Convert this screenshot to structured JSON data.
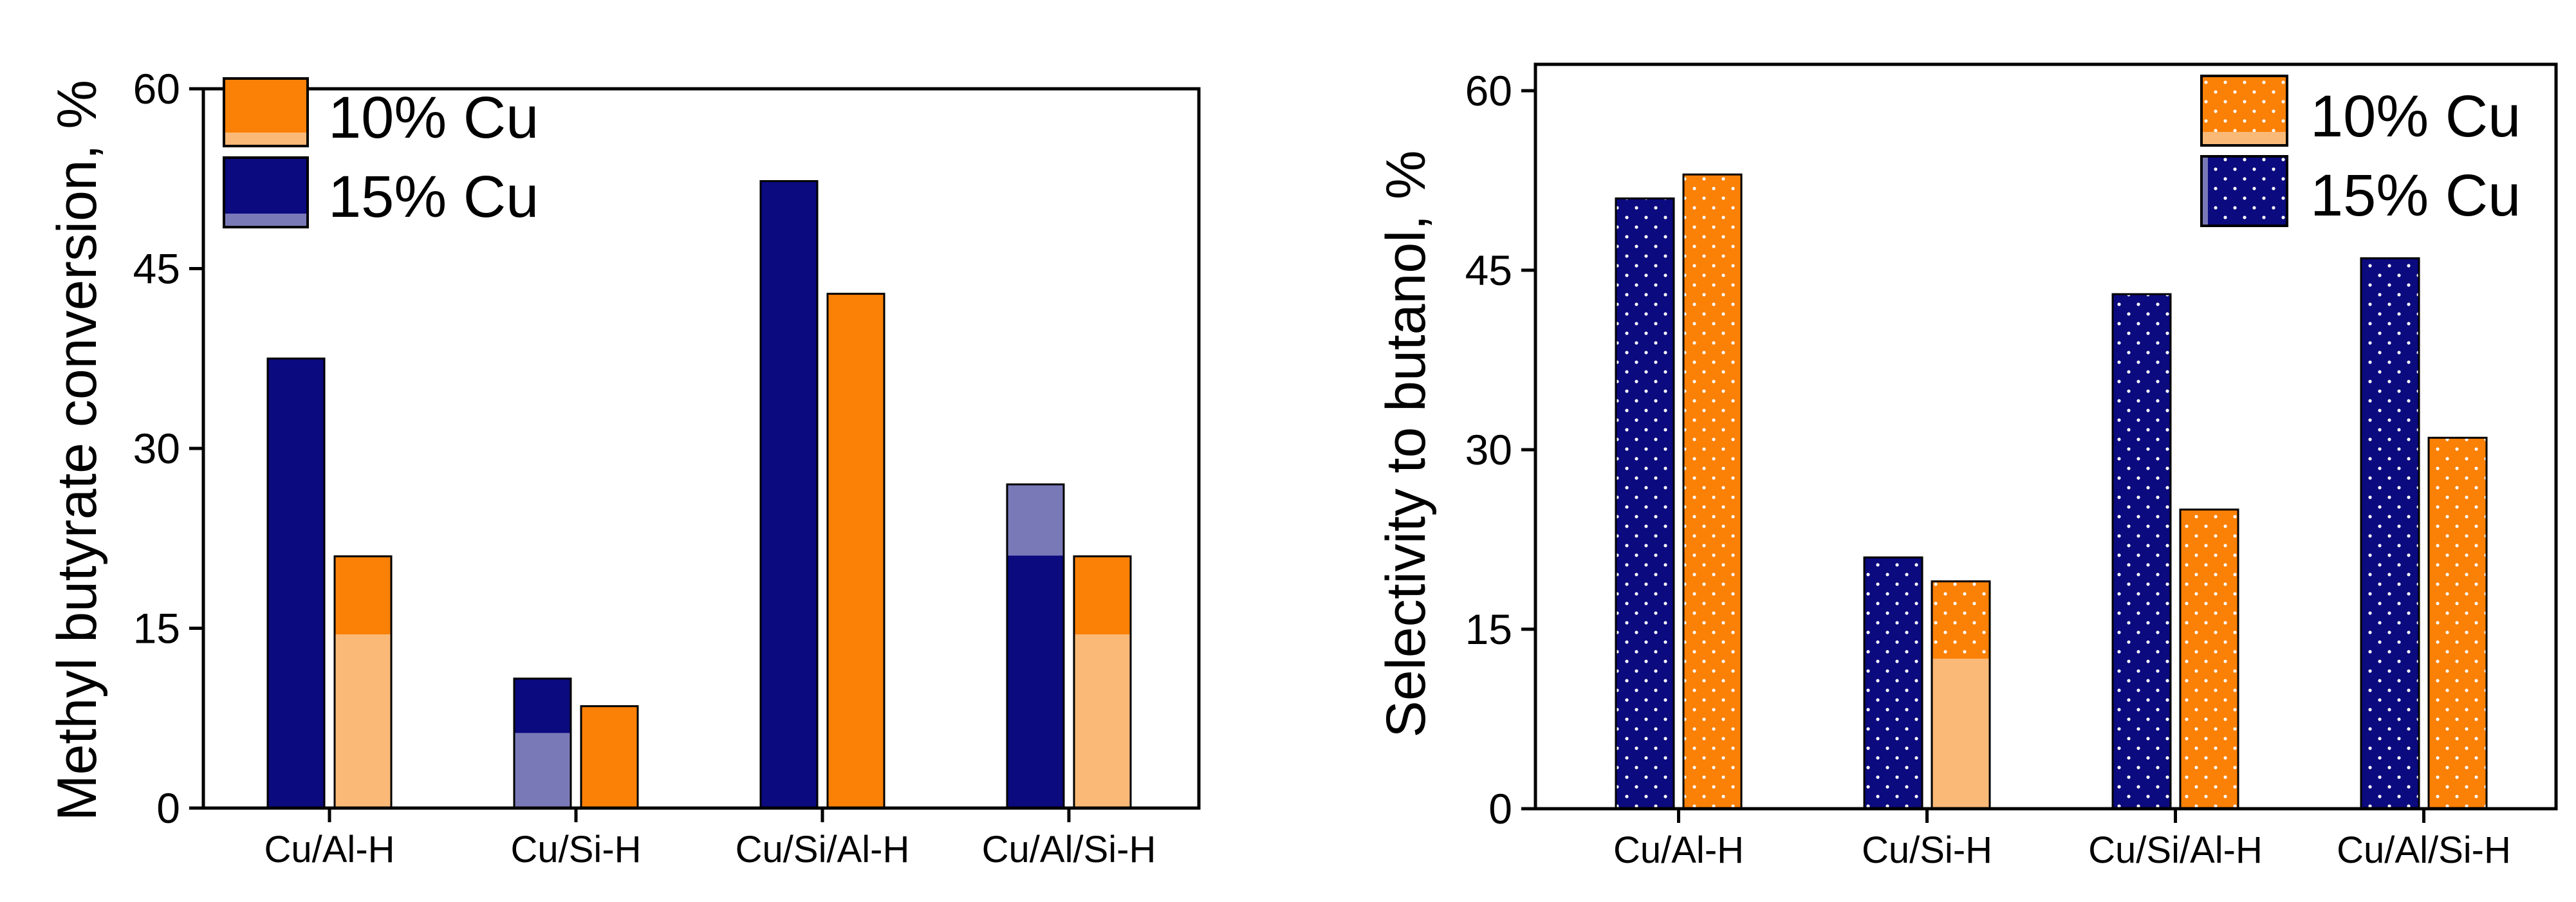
{
  "colors": {
    "navy": "#0b0a7e",
    "orange": "#fa8006",
    "orange_light": "#fbb977",
    "navy_light": "#7a79b8",
    "dot": "#ffffff",
    "axis": "#000000"
  },
  "chart_data": [
    {
      "type": "bar",
      "id": "conversion",
      "ylabel": "Methyl butyrate conversion, %",
      "xlabel": "",
      "ylim": [
        0,
        60
      ],
      "yticks": [
        "0",
        "15",
        "30",
        "45",
        "60"
      ],
      "categories": [
        "Cu/Al-H",
        "Cu/Si-H",
        "Cu/Si/Al-H",
        "Cu/Al/Si-H"
      ],
      "legend": {
        "position": "top-left",
        "entries": [
          "10% Cu",
          "15% Cu"
        ]
      },
      "pattern": "solid",
      "series": [
        {
          "name": "15% Cu",
          "values": [
            37.5,
            10.8,
            52.3,
            27.0
          ]
        },
        {
          "name": "10% Cu",
          "values": [
            21.0,
            8.5,
            42.9,
            21.0
          ]
        }
      ]
    },
    {
      "type": "bar",
      "id": "selectivity",
      "ylabel": "Selectivity to butanol, %",
      "xlabel": "",
      "ylim": [
        0,
        60
      ],
      "yticks": [
        "0",
        "15",
        "30",
        "45",
        "60"
      ],
      "categories": [
        "Cu/Al-H",
        "Cu/Si-H",
        "Cu/Si/Al-H",
        "Cu/Al/Si-H"
      ],
      "legend": {
        "position": "top-right",
        "entries": [
          "10% Cu",
          "15% Cu"
        ]
      },
      "pattern": "dotted",
      "series": [
        {
          "name": "15% Cu",
          "values": [
            51.0,
            21.0,
            43.0,
            46.0
          ]
        },
        {
          "name": "10% Cu",
          "values": [
            53.0,
            19.0,
            25.0,
            31.0
          ]
        }
      ]
    }
  ]
}
